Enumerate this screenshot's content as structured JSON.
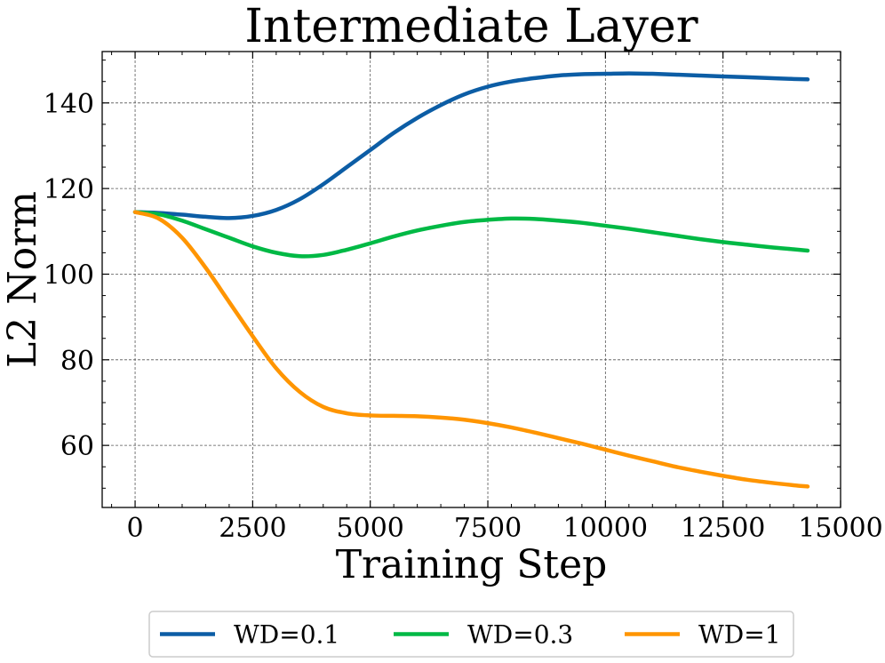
{
  "chart_data": {
    "type": "line",
    "title": "Intermediate Layer",
    "xlabel": "Training Step",
    "ylabel": "L2 Norm",
    "xlim": [
      -700,
      15000
    ],
    "ylim": [
      45.5,
      152
    ],
    "xticks": [
      0,
      2500,
      5000,
      7500,
      10000,
      12500,
      15000
    ],
    "yticks": [
      60,
      80,
      100,
      120,
      140
    ],
    "grid": true,
    "legend_position": "bottom-center, below plot",
    "series": [
      {
        "name": "WD=0.1",
        "color": "#0C5DA5",
        "x": [
          0,
          500,
          1000,
          1500,
          2000,
          2500,
          3000,
          3500,
          4000,
          4500,
          5000,
          5500,
          6000,
          6500,
          7000,
          7500,
          8000,
          8500,
          9000,
          9500,
          10000,
          10500,
          11000,
          11500,
          12000,
          12500,
          13000,
          13500,
          14000,
          14300
        ],
        "y": [
          114.5,
          114.3,
          113.9,
          113.4,
          113.1,
          113.6,
          115.0,
          117.5,
          121.0,
          125.0,
          129.0,
          133.0,
          136.5,
          139.5,
          142.0,
          143.8,
          145.0,
          145.8,
          146.4,
          146.7,
          146.8,
          146.9,
          146.8,
          146.6,
          146.4,
          146.2,
          146.0,
          145.8,
          145.6,
          145.5
        ]
      },
      {
        "name": "WD=0.3",
        "color": "#00B945",
        "x": [
          0,
          500,
          1000,
          1500,
          2000,
          2500,
          3000,
          3500,
          4000,
          4500,
          5000,
          5500,
          6000,
          6500,
          7000,
          7500,
          8000,
          8500,
          9000,
          9500,
          10000,
          10500,
          11000,
          11500,
          12000,
          12500,
          13000,
          13500,
          14000,
          14300
        ],
        "y": [
          114.5,
          114.0,
          112.5,
          110.5,
          108.5,
          106.5,
          105.0,
          104.2,
          104.5,
          105.7,
          107.2,
          108.8,
          110.2,
          111.3,
          112.2,
          112.7,
          113.0,
          112.9,
          112.5,
          112.0,
          111.3,
          110.6,
          109.8,
          109.0,
          108.2,
          107.5,
          106.9,
          106.3,
          105.8,
          105.5
        ]
      },
      {
        "name": "WD=1",
        "color": "#FF9500",
        "x": [
          0,
          500,
          1000,
          1500,
          2000,
          2500,
          3000,
          3500,
          4000,
          4500,
          5000,
          5500,
          6000,
          6500,
          7000,
          7500,
          8000,
          8500,
          9000,
          9500,
          10000,
          10500,
          11000,
          11500,
          12000,
          12500,
          13000,
          13500,
          14000,
          14300
        ],
        "y": [
          114.5,
          113.0,
          108.5,
          101.5,
          93.5,
          85.5,
          78.0,
          72.5,
          69.0,
          67.5,
          67.0,
          66.9,
          66.8,
          66.5,
          66.0,
          65.2,
          64.2,
          63.0,
          61.7,
          60.4,
          59.0,
          57.6,
          56.3,
          55.0,
          53.9,
          52.9,
          52.0,
          51.3,
          50.7,
          50.4
        ]
      }
    ]
  }
}
